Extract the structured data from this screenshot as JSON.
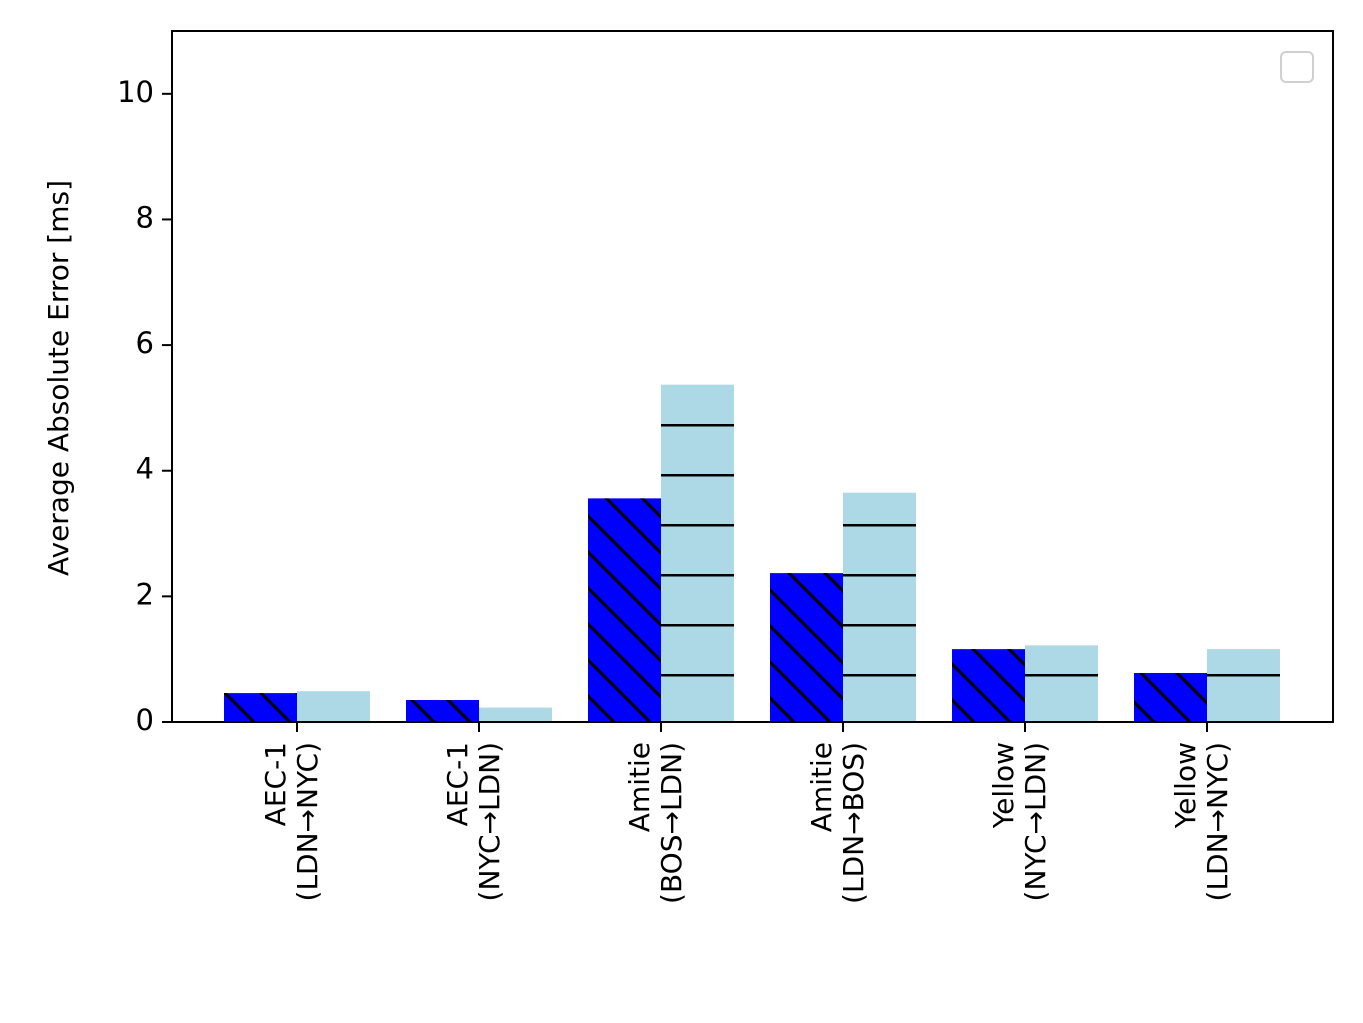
{
  "chart_data": {
    "type": "bar",
    "y_label": "Average Absolute Error [ms]",
    "categories": [
      "AEC-1\n(LDN→NYC)",
      "AEC-1\n(NYC→LDN)",
      "Amitie\n(BOS→LDN)",
      "Amitie\n(LDN→BOS)",
      "Yellow\n(NYC→LDN)",
      "Yellow\n(LDN→NYC)"
    ],
    "series": [
      {
        "color": "#0000ff",
        "hatch": "\\",
        "values": [
          0.46,
          0.35,
          3.56,
          2.37,
          1.16,
          0.78
        ]
      },
      {
        "color": "#add8e6",
        "hatch": "-",
        "values": [
          0.49,
          0.23,
          5.37,
          3.65,
          1.22,
          1.16
        ]
      }
    ],
    "ylim": [
      0,
      11
    ],
    "yticks": [
      0,
      2,
      4,
      6,
      8,
      10
    ],
    "legend": "upper right"
  }
}
